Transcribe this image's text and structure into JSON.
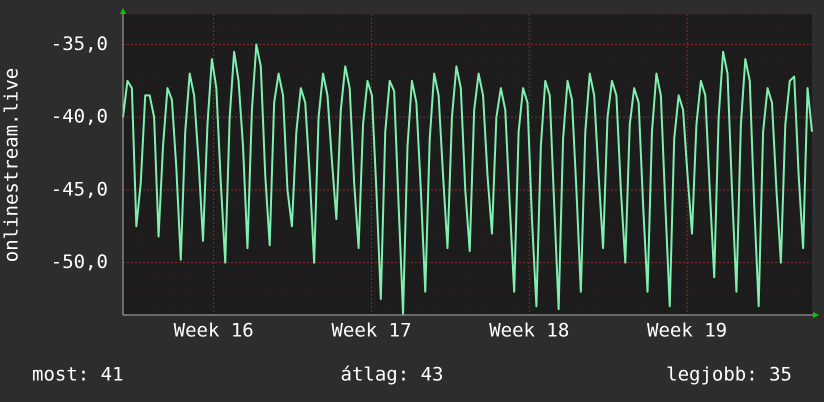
{
  "chart_data": {
    "type": "line",
    "y_label": "onlinestream.live",
    "color": "#80f0b0",
    "grid": true,
    "values": [
      -40.0,
      -37.5,
      -38.0,
      -47.5,
      -44.5,
      -38.5,
      -38.5,
      -40.0,
      -48.2,
      -42.0,
      -38.0,
      -38.8,
      -43.5,
      -49.8,
      -41.0,
      -37.0,
      -38.5,
      -43.0,
      -48.5,
      -40.5,
      -36.0,
      -38.0,
      -44.5,
      -50.0,
      -40.0,
      -35.5,
      -37.5,
      -42.0,
      -49.0,
      -39.5,
      -35.0,
      -36.5,
      -44.0,
      -48.8,
      -39.0,
      -37.0,
      -38.5,
      -45.0,
      -47.5,
      -41.0,
      -38.0,
      -39.0,
      -44.0,
      -50.0,
      -40.0,
      -37.0,
      -38.5,
      -43.0,
      -47.0,
      -39.5,
      -36.5,
      -38.0,
      -44.5,
      -49.0,
      -40.5,
      -37.5,
      -38.5,
      -45.0,
      -52.5,
      -41.0,
      -37.5,
      -38.2,
      -46.0,
      -53.5,
      -42.0,
      -37.5,
      -39.0,
      -45.0,
      -52.0,
      -41.5,
      -37.0,
      -38.5,
      -44.0,
      -49.0,
      -40.0,
      -36.5,
      -38.0,
      -45.0,
      -49.2,
      -39.5,
      -37.0,
      -38.5,
      -44.0,
      -48.0,
      -40.0,
      -38.0,
      -39.5,
      -46.0,
      -52.0,
      -41.0,
      -38.0,
      -39.0,
      -47.0,
      -53.0,
      -42.0,
      -37.5,
      -38.5,
      -46.0,
      -53.2,
      -41.5,
      -37.5,
      -38.8,
      -45.0,
      -52.0,
      -41.0,
      -37.0,
      -38.5,
      -44.0,
      -49.0,
      -40.0,
      -37.5,
      -38.5,
      -45.0,
      -50.0,
      -40.5,
      -38.0,
      -39.0,
      -46.0,
      -52.0,
      -41.0,
      -37.0,
      -38.5,
      -46.0,
      -53.0,
      -41.5,
      -38.5,
      -39.5,
      -44.0,
      -48.0,
      -40.5,
      -37.5,
      -38.5,
      -45.0,
      -51.0,
      -40.0,
      -35.5,
      -37.0,
      -45.0,
      -52.0,
      -40.5,
      -36.0,
      -37.5,
      -46.0,
      -53.0,
      -41.0,
      -38.0,
      -39.0,
      -45.0,
      -50.0,
      -40.5,
      -37.5,
      -37.2,
      -44.0,
      -49.0,
      -38.0,
      -41.0
    ],
    "xlim": [
      0,
      155
    ],
    "xticks": [
      {
        "value": 20.4,
        "label": "Week 16"
      },
      {
        "value": 55.9,
        "label": "Week 17"
      },
      {
        "value": 91.4,
        "label": "Week 18"
      },
      {
        "value": 126.9,
        "label": "Week 19"
      }
    ],
    "ylim": [
      -53.6,
      -32.9
    ],
    "yticks": [
      {
        "value": -35,
        "label": "-35,0"
      },
      {
        "value": -40,
        "label": "-40,0"
      },
      {
        "value": -45,
        "label": "-45,0"
      },
      {
        "value": -50,
        "label": "-50,0"
      }
    ],
    "stats": [
      "most: 41",
      "átlag: 43",
      "legjobb: 35"
    ]
  }
}
